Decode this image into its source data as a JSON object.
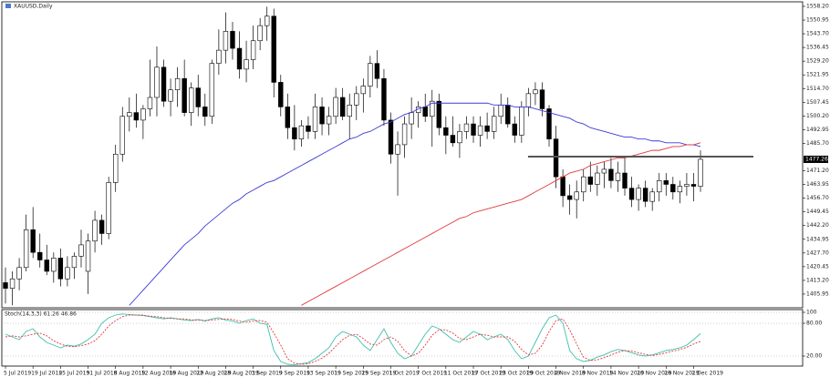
{
  "chart_data": [
    {
      "type": "candlestick",
      "title": "XAUUSD,Daily",
      "categories": [
        "5 Jul 2019",
        null,
        null,
        null,
        "19 Jul 2019",
        null,
        null,
        null,
        "25 Jul 2019",
        null,
        null,
        null,
        "31 Jul 2019",
        null,
        null,
        null,
        "6 Aug 2019",
        null,
        null,
        null,
        "12 Aug 2019",
        null,
        null,
        null,
        "16 Aug 2019",
        null,
        null,
        null,
        "22 Aug 2019",
        null,
        null,
        null,
        "28 Aug 2019",
        null,
        null,
        null,
        "3 Sep 2019",
        null,
        null,
        null,
        "9 Sep 2019",
        null,
        null,
        null,
        "13 Sep 2019",
        null,
        null,
        null,
        "19 Sep 2019",
        null,
        null,
        null,
        "25 Sep 2019",
        null,
        null,
        null,
        "1 Oct 2019",
        null,
        null,
        null,
        "7 Oct 2019",
        null,
        null,
        null,
        "11 Oct 2019",
        null,
        null,
        null,
        "17 Oct 2019",
        null,
        null,
        null,
        "23 Oct 2019",
        null,
        null,
        null,
        "29 Oct 2019",
        null,
        null,
        null,
        "4 Nov 2019",
        null,
        null,
        null,
        "8 Nov 2019",
        null,
        null,
        null,
        "14 Nov 2019",
        null,
        null,
        null,
        "20 Nov 2019",
        null,
        null,
        null,
        "26 Nov 2019",
        null,
        null,
        null,
        "2 Dec 2019",
        null
      ],
      "open": [
        1412,
        1409,
        1414,
        1420,
        1440,
        1428,
        1424,
        1418,
        1425,
        1414,
        1420,
        1426,
        1418,
        1434,
        1445,
        1438,
        1465,
        1480,
        1500,
        1502,
        1498,
        1504,
        1510,
        1526,
        1508,
        1514,
        1520,
        1502,
        1515,
        1505,
        1500,
        1528,
        1535,
        1545,
        1536,
        1525,
        1530,
        1540,
        1548,
        1553,
        1518,
        1505,
        1494,
        1488,
        1495,
        1492,
        1505,
        1496,
        1500,
        1510,
        1500,
        1506,
        1512,
        1516,
        1528,
        1520,
        1498,
        1480,
        1485,
        1496,
        1502,
        1505,
        1500,
        1508,
        1494,
        1490,
        1486,
        1492,
        1496,
        1490,
        1495,
        1492,
        1500,
        1506,
        1496,
        1490,
        1505,
        1512,
        1514,
        1504,
        1488,
        1468,
        1458,
        1456,
        1460,
        1468,
        1464,
        1470,
        1472,
        1466,
        1470,
        1462,
        1456,
        1462,
        1455,
        1460,
        1466,
        1464,
        1460,
        1463,
        1464,
        1463
      ],
      "high": [
        1420,
        1418,
        1425,
        1448,
        1452,
        1438,
        1432,
        1428,
        1430,
        1426,
        1428,
        1440,
        1438,
        1450,
        1448,
        1468,
        1485,
        1505,
        1510,
        1512,
        1506,
        1530,
        1537,
        1530,
        1520,
        1526,
        1530,
        1518,
        1522,
        1512,
        1530,
        1546,
        1555,
        1550,
        1545,
        1540,
        1548,
        1552,
        1558,
        1557,
        1522,
        1512,
        1506,
        1498,
        1500,
        1512,
        1510,
        1505,
        1515,
        1515,
        1512,
        1516,
        1520,
        1532,
        1535,
        1525,
        1502,
        1492,
        1500,
        1510,
        1508,
        1512,
        1514,
        1512,
        1500,
        1500,
        1496,
        1500,
        1500,
        1500,
        1502,
        1505,
        1512,
        1510,
        1500,
        1508,
        1515,
        1518,
        1518,
        1506,
        1495,
        1472,
        1464,
        1466,
        1472,
        1476,
        1474,
        1476,
        1478,
        1476,
        1478,
        1468,
        1464,
        1466,
        1462,
        1470,
        1470,
        1468,
        1466,
        1470,
        1470,
        1482
      ],
      "low": [
        1401,
        1400,
        1408,
        1418,
        1425,
        1420,
        1416,
        1412,
        1410,
        1410,
        1414,
        1420,
        1406,
        1428,
        1432,
        1435,
        1460,
        1476,
        1492,
        1494,
        1488,
        1500,
        1500,
        1505,
        1500,
        1505,
        1500,
        1495,
        1500,
        1495,
        1496,
        1522,
        1528,
        1530,
        1520,
        1518,
        1525,
        1535,
        1540,
        1510,
        1500,
        1488,
        1482,
        1484,
        1488,
        1488,
        1490,
        1490,
        1496,
        1498,
        1488,
        1498,
        1502,
        1510,
        1515,
        1495,
        1475,
        1458,
        1478,
        1488,
        1494,
        1497,
        1484,
        1490,
        1480,
        1484,
        1478,
        1488,
        1486,
        1484,
        1488,
        1488,
        1496,
        1494,
        1486,
        1486,
        1500,
        1506,
        1500,
        1484,
        1462,
        1452,
        1448,
        1446,
        1455,
        1460,
        1458,
        1462,
        1462,
        1460,
        1458,
        1452,
        1450,
        1452,
        1450,
        1455,
        1458,
        1456,
        1454,
        1458,
        1455,
        1460
      ],
      "close": [
        1409,
        1414,
        1420,
        1440,
        1428,
        1424,
        1418,
        1425,
        1414,
        1420,
        1426,
        1432,
        1434,
        1445,
        1438,
        1465,
        1480,
        1500,
        1502,
        1498,
        1504,
        1510,
        1526,
        1508,
        1514,
        1520,
        1502,
        1515,
        1505,
        1500,
        1528,
        1535,
        1545,
        1536,
        1525,
        1530,
        1540,
        1548,
        1553,
        1518,
        1505,
        1494,
        1488,
        1495,
        1492,
        1505,
        1496,
        1500,
        1510,
        1500,
        1506,
        1512,
        1516,
        1528,
        1520,
        1498,
        1480,
        1485,
        1496,
        1502,
        1505,
        1500,
        1508,
        1494,
        1490,
        1486,
        1492,
        1496,
        1490,
        1495,
        1492,
        1500,
        1506,
        1496,
        1490,
        1505,
        1512,
        1514,
        1504,
        1488,
        1468,
        1458,
        1456,
        1460,
        1468,
        1464,
        1470,
        1472,
        1466,
        1470,
        1462,
        1456,
        1462,
        1455,
        1460,
        1466,
        1464,
        1460,
        1463,
        1464,
        1463,
        1477.26
      ],
      "series": [
        {
          "color": "#3a3ad6",
          "values": [
            null,
            null,
            null,
            null,
            null,
            null,
            null,
            null,
            null,
            null,
            null,
            null,
            null,
            null,
            null,
            null,
            null,
            null,
            1400,
            1404,
            1408,
            1412,
            1416,
            1420,
            1424,
            1428,
            1432,
            1435,
            1438,
            1442,
            1445,
            1448,
            1451,
            1454,
            1456,
            1459,
            1461,
            1463,
            1465,
            1466,
            1468,
            1470,
            1472,
            1474,
            1476,
            1478,
            1480,
            1482,
            1484,
            1486,
            1488,
            1489,
            1491,
            1492,
            1494,
            1496,
            1497,
            1499,
            1501,
            1502,
            1504,
            1505,
            1507,
            1507,
            1507,
            1507,
            1507,
            1507,
            1507,
            1507,
            1507,
            1506,
            1506,
            1506,
            1505,
            1505,
            1505,
            1504,
            1503,
            1502,
            1501,
            1500,
            1499,
            1497,
            1496,
            1494,
            1493,
            1492,
            1491,
            1490,
            1489,
            1489,
            1488,
            1488,
            1487,
            1487,
            1486,
            1486,
            1486,
            1485,
            1485,
            1484
          ]
        },
        {
          "color": "#e03a3a",
          "values": [
            null,
            null,
            null,
            null,
            null,
            null,
            null,
            null,
            null,
            null,
            null,
            null,
            null,
            null,
            null,
            null,
            null,
            null,
            null,
            null,
            null,
            null,
            null,
            null,
            null,
            null,
            null,
            null,
            null,
            null,
            null,
            null,
            null,
            null,
            null,
            null,
            null,
            null,
            null,
            null,
            null,
            null,
            null,
            1400,
            1402,
            1404,
            1406,
            1408,
            1410,
            1412,
            1414,
            1416,
            1418,
            1420,
            1422,
            1424,
            1426,
            1428,
            1430,
            1432,
            1434,
            1436,
            1438,
            1440,
            1442,
            1444,
            1446,
            1447,
            1449,
            1450,
            1451,
            1452,
            1453,
            1454,
            1455,
            1456,
            1458,
            1460,
            1462,
            1464,
            1466,
            1468,
            1470,
            1471,
            1472,
            1474,
            1475,
            1476,
            1477,
            1478,
            1478,
            1479,
            1480,
            1481,
            1482,
            1482,
            1483,
            1484,
            1484,
            1485,
            1485,
            1486
          ]
        }
      ],
      "level_line": {
        "value": 1478.7,
        "color": "#555555"
      },
      "current_price": 1477.26,
      "ylim": [
        1398.7,
        1560.6
      ],
      "yticks": [
        {
          "value": 1405.95,
          "label": "1405.95"
        },
        {
          "value": 1413.2,
          "label": "1413.20"
        },
        1420.45,
        {
          "value": 1427.7,
          "label": "1427.70"
        },
        1434.95,
        {
          "value": 1442.2,
          "label": "1442.20"
        },
        1449.45,
        {
          "value": 1456.7,
          "label": "1456.70"
        },
        1463.95,
        {
          "value": 1471.2,
          "label": "1471.20"
        },
        {
          "value": 1485.7,
          "label": "1485.70"
        },
        1492.95,
        {
          "value": 1500.2,
          "label": "1500.20"
        },
        1507.45,
        {
          "value": 1514.7,
          "label": "1514.70"
        },
        1521.95,
        {
          "value": 1529.2,
          "label": "1529.20"
        },
        1536.45,
        {
          "value": 1543.7,
          "label": "1543.70"
        },
        1550.95,
        {
          "value": 1558.2,
          "label": "1558.20"
        }
      ]
    },
    {
      "type": "line",
      "title": "Stoch(14,3,3) 61.26 46.86",
      "series": [
        {
          "color": "#3fbfae",
          "dashed": false,
          "values": [
            60,
            55,
            50,
            65,
            70,
            55,
            45,
            40,
            35,
            40,
            38,
            42,
            50,
            60,
            80,
            90,
            95,
            97,
            96,
            95,
            94,
            92,
            90,
            88,
            90,
            88,
            86,
            85,
            87,
            84,
            88,
            90,
            86,
            84,
            80,
            85,
            88,
            80,
            78,
            30,
            10,
            5,
            4,
            6,
            8,
            15,
            25,
            35,
            55,
            65,
            60,
            55,
            40,
            30,
            50,
            70,
            45,
            25,
            15,
            20,
            40,
            60,
            75,
            70,
            60,
            50,
            45,
            55,
            65,
            60,
            50,
            55,
            60,
            50,
            30,
            15,
            20,
            45,
            70,
            90,
            95,
            80,
            30,
            15,
            10,
            12,
            18,
            22,
            28,
            32,
            30,
            26,
            22,
            20,
            22,
            26,
            30,
            32,
            35,
            40,
            50,
            61.26
          ]
        },
        {
          "color": "#e03a3a",
          "dashed": true,
          "values": [
            55,
            57,
            55,
            57,
            60,
            62,
            57,
            48,
            42,
            38,
            37,
            39,
            42,
            48,
            60,
            75,
            85,
            92,
            95,
            95,
            95,
            93,
            92,
            90,
            89,
            88,
            88,
            86,
            86,
            85,
            86,
            87,
            88,
            87,
            84,
            82,
            84,
            85,
            82,
            62,
            40,
            15,
            7,
            5,
            6,
            10,
            16,
            25,
            38,
            50,
            58,
            60,
            52,
            42,
            40,
            50,
            55,
            47,
            30,
            20,
            25,
            40,
            58,
            68,
            68,
            62,
            52,
            50,
            55,
            60,
            58,
            55,
            55,
            55,
            47,
            32,
            22,
            25,
            40,
            65,
            85,
            88,
            68,
            42,
            18,
            12,
            13,
            17,
            22,
            27,
            30,
            29,
            26,
            23,
            21,
            23,
            26,
            29,
            32,
            36,
            42,
            46.86
          ]
        }
      ],
      "ylim": [
        0,
        100
      ],
      "yticks": [
        100,
        {
          "value": 80,
          "label": "80.00"
        },
        {
          "value": 20,
          "label": "20.00"
        }
      ]
    }
  ]
}
